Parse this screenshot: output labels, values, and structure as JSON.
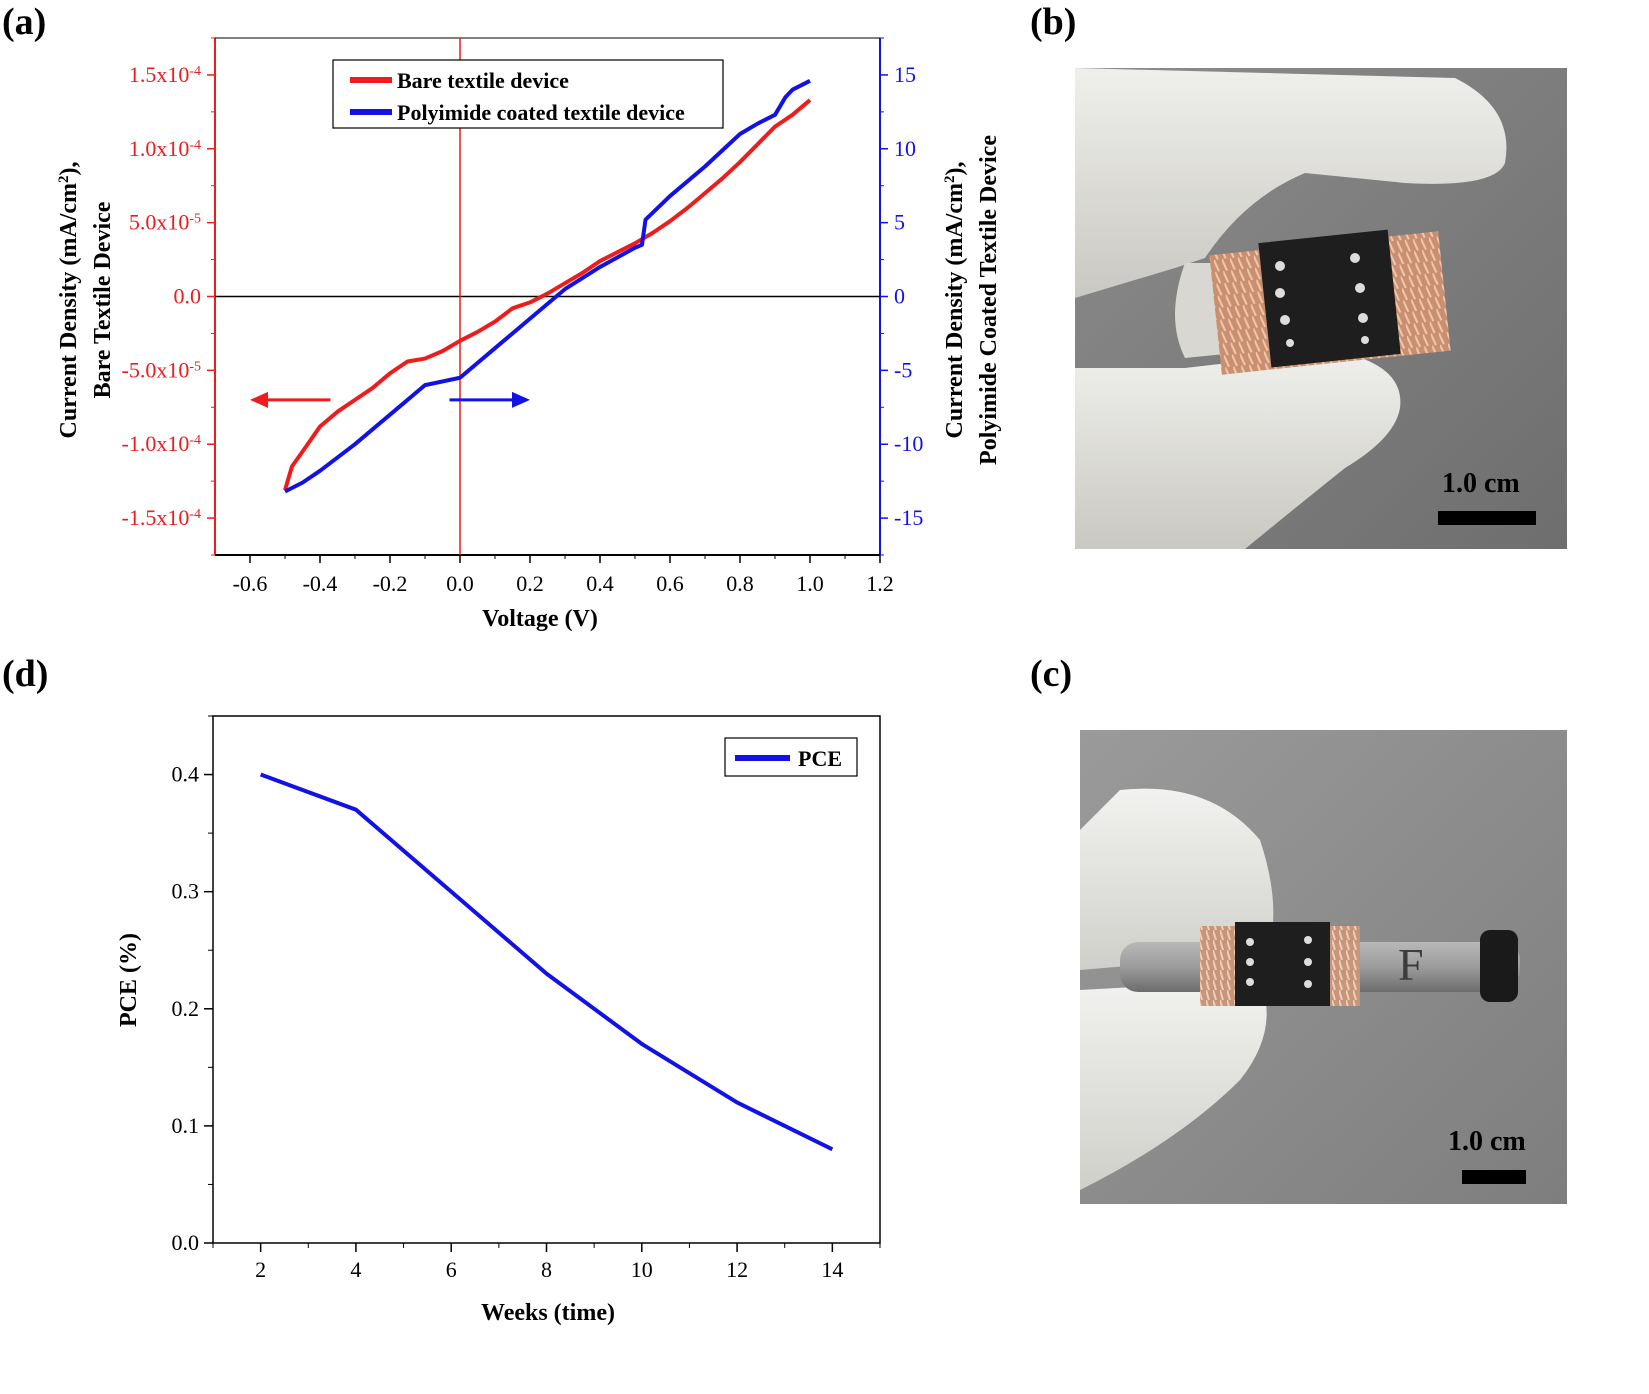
{
  "panels": {
    "a": "(a)",
    "b": "(b)",
    "c": "(c)",
    "d": "(d)"
  },
  "photos": {
    "b": {
      "description_icon": "glove-holding-textile-device",
      "scale_bar_label": "1.0 cm"
    },
    "c": {
      "description_icon": "textile-device-on-pen",
      "pen_letter": "F",
      "scale_bar_label": "1.0 cm"
    }
  },
  "colors": {
    "red": "#ee1c1c",
    "blue": "#1212e6",
    "black": "#000000"
  },
  "chart_data": [
    {
      "panel": "a",
      "type": "line",
      "xlabel": "Voltage (V)",
      "xlim": [
        -0.7,
        1.2
      ],
      "x_ticks": [
        -0.6,
        -0.4,
        -0.2,
        0.0,
        0.2,
        0.4,
        0.6,
        0.8,
        1.0,
        1.2
      ],
      "x_tick_labels": [
        "-0.6",
        "-0.4",
        "-0.2",
        "0.0",
        "0.2",
        "0.4",
        "0.6",
        "0.8",
        "1.0",
        "1.2"
      ],
      "left_axis": {
        "label_line1": "Current Density (mA/cm",
        "label_sup": "2",
        "label_line1_end": "),",
        "label_line2": "Bare Textile Device",
        "ylim": [
          -0.000175,
          0.000175
        ],
        "ticks": [
          0.00015,
          0.0001,
          5e-05,
          0,
          -5e-05,
          -0.0001,
          -0.00015
        ],
        "tick_bases": [
          "1.5x10",
          "1.0x10",
          "5.0x10",
          "0.0",
          "-5.0x10",
          "-1.0x10",
          "-1.5x10"
        ],
        "tick_exps": [
          "-4",
          "-4",
          "-5",
          "",
          "-5",
          "-4",
          "-4"
        ]
      },
      "right_axis": {
        "label_line1": "Current Density (mA/cm",
        "label_sup": "2",
        "label_line1_end": "),",
        "label_line2": "Polyimide Coated Textile Device",
        "ylim": [
          -17.5,
          17.5
        ],
        "ticks": [
          15,
          10,
          5,
          0,
          -5,
          -10,
          -15
        ],
        "tick_labels": [
          "15",
          "10",
          "5",
          "0",
          "-5",
          "-10",
          "-15"
        ]
      },
      "legend": {
        "position": "top-center"
      },
      "series": [
        {
          "name": "Bare textile device",
          "axis": "left",
          "color": "red",
          "x": [
            -0.5,
            -0.48,
            -0.45,
            -0.4,
            -0.35,
            -0.3,
            -0.25,
            -0.2,
            -0.15,
            -0.1,
            -0.05,
            0.0,
            0.05,
            0.1,
            0.15,
            0.2,
            0.25,
            0.3,
            0.35,
            0.4,
            0.45,
            0.5,
            0.55,
            0.6,
            0.65,
            0.7,
            0.75,
            0.8,
            0.85,
            0.9,
            0.95,
            1.0
          ],
          "values": [
            -0.000131,
            -0.000115,
            -0.000105,
            -8.8e-05,
            -7.8e-05,
            -7e-05,
            -6.2e-05,
            -5.2e-05,
            -4.4e-05,
            -4.2e-05,
            -3.7e-05,
            -3e-05,
            -2.4e-05,
            -1.7e-05,
            -8e-06,
            -4e-06,
            2e-06,
            9e-06,
            1.6e-05,
            2.4e-05,
            3e-05,
            3.6e-05,
            4.3e-05,
            5.1e-05,
            6e-05,
            7e-05,
            8e-05,
            9.1e-05,
            0.000103,
            0.000115,
            0.000123,
            0.000133
          ]
        },
        {
          "name": "Polyimide coated textile device",
          "axis": "right",
          "color": "blue",
          "x": [
            -0.5,
            -0.45,
            -0.4,
            -0.3,
            -0.2,
            -0.1,
            0.0,
            0.1,
            0.2,
            0.3,
            0.4,
            0.5,
            0.52,
            0.53,
            0.6,
            0.7,
            0.8,
            0.85,
            0.9,
            0.93,
            0.95,
            1.0
          ],
          "values": [
            -13.2,
            -12.6,
            -11.8,
            -10.0,
            -8.0,
            -6.0,
            -5.5,
            -3.5,
            -1.5,
            0.5,
            2.0,
            3.3,
            3.5,
            5.2,
            6.8,
            8.8,
            11.0,
            11.7,
            12.3,
            13.5,
            14.0,
            14.6
          ]
        }
      ],
      "arrows": [
        {
          "direction": "left",
          "color": "red",
          "x_from": -0.37,
          "x_to": -0.6,
          "y_right": -7.0
        },
        {
          "direction": "right",
          "color": "blue",
          "x_from": -0.03,
          "x_to": 0.2,
          "y_right": -7.0
        }
      ]
    },
    {
      "panel": "d",
      "type": "line",
      "xlabel": "Weeks (time)",
      "ylabel": "PCE (%)",
      "xlim": [
        1,
        15
      ],
      "ylim": [
        0,
        0.45
      ],
      "x_ticks": [
        2,
        4,
        6,
        8,
        10,
        12,
        14
      ],
      "x_tick_labels": [
        "2",
        "4",
        "6",
        "8",
        "10",
        "12",
        "14"
      ],
      "y_ticks": [
        0.0,
        0.1,
        0.2,
        0.3,
        0.4
      ],
      "y_tick_labels": [
        "0.0",
        "0.1",
        "0.2",
        "0.3",
        "0.4"
      ],
      "legend": {
        "position": "top-right"
      },
      "series": [
        {
          "name": "PCE",
          "color": "blue",
          "x": [
            2,
            4,
            6,
            8,
            10,
            12,
            14
          ],
          "values": [
            0.4,
            0.37,
            0.3,
            0.23,
            0.17,
            0.12,
            0.08
          ]
        }
      ]
    }
  ]
}
